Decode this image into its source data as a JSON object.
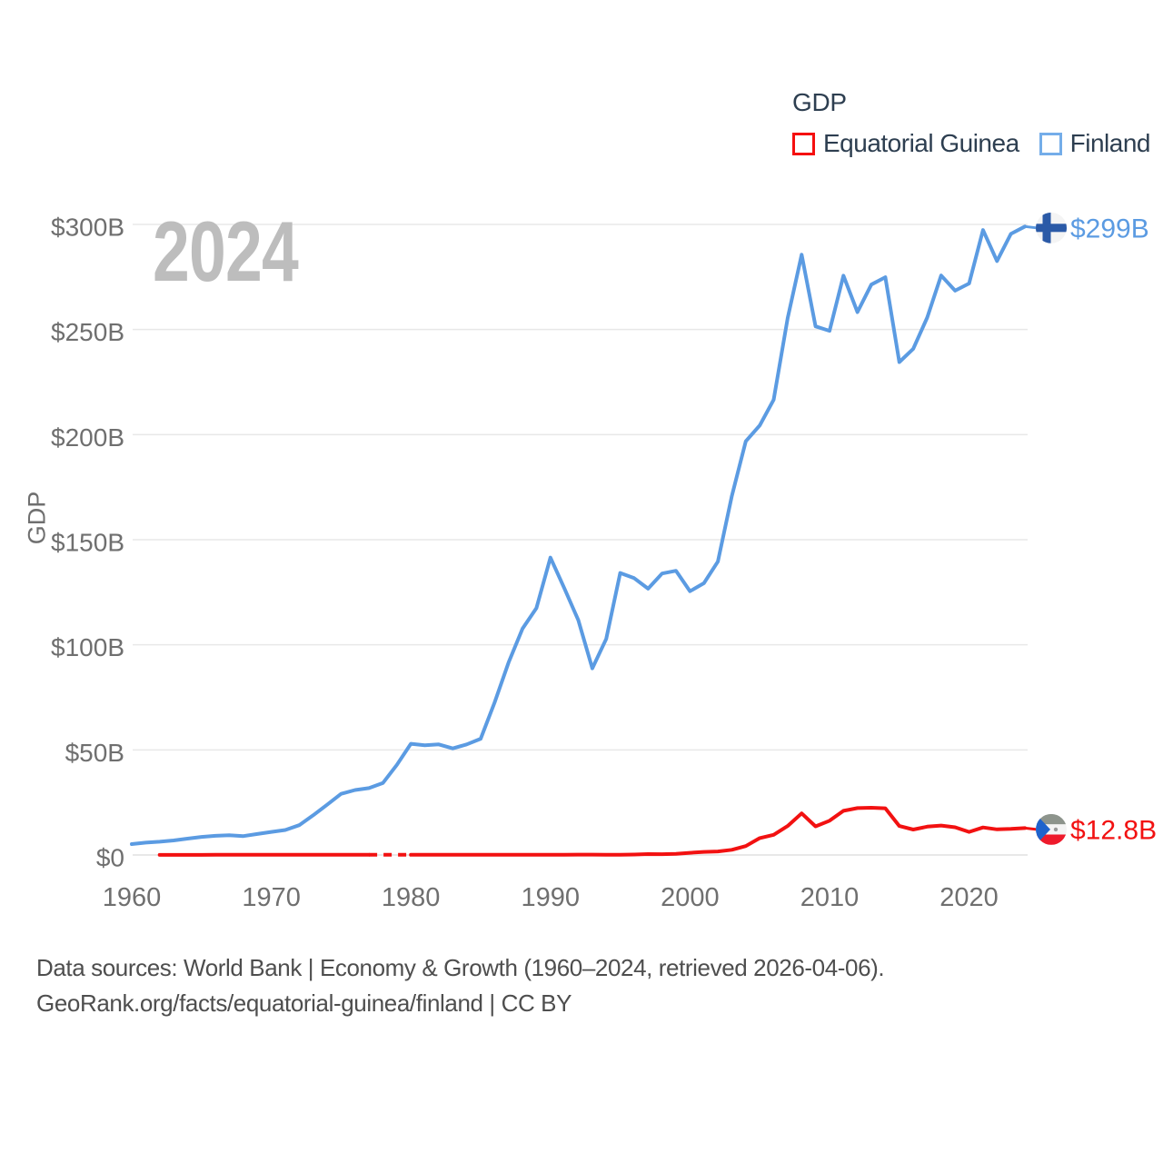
{
  "legend": {
    "title": "GDP",
    "items": [
      {
        "id": "equatorial-guinea",
        "label": "Equatorial Guinea",
        "swatch_color": "#f50f0f"
      },
      {
        "id": "finland",
        "label": "Finland",
        "swatch_color": "#74ade9"
      }
    ]
  },
  "watermark": "2024",
  "y_axis_title": "GDP",
  "footer": {
    "line1": "Data sources: World Bank | Economy & Growth (1960–2024, retrieved 2026-04-06).",
    "line2": "GeoRank.org/facts/equatorial-guinea/finland | CC BY"
  },
  "colors": {
    "grid": "#e8e8e8",
    "zero_line": "#e0e0e0",
    "tick_text": "#6f6f6f",
    "axis_title_text": "#6f6f6f",
    "watermark_text": "#bdbdbd",
    "legend_text": "#2d3e50",
    "footer_text": "#4e4e4e",
    "finland_line": "#5b9be2",
    "equatorial_guinea_line": "#f21111",
    "finland_flag_cross": "#2b5aa7",
    "flag_white": "#f4f4f4",
    "eqg_flag_green": "#8d948c",
    "eqg_flag_red": "#ee1a2b",
    "eqg_flag_blue": "#1f63cc"
  },
  "chart_data": {
    "type": "line",
    "title": "GDP",
    "xlabel": "",
    "ylabel": "GDP",
    "xlim": [
      1960,
      2024
    ],
    "ylim": [
      0,
      300
    ],
    "grid": "horizontal",
    "legend_position": "top-right",
    "x_ticks": [
      1960,
      1970,
      1980,
      1990,
      2000,
      2010,
      2020
    ],
    "y_ticks": [
      {
        "value": 0,
        "label": "$0"
      },
      {
        "value": 50,
        "label": "$50B"
      },
      {
        "value": 100,
        "label": "$100B"
      },
      {
        "value": 150,
        "label": "$150B"
      },
      {
        "value": 200,
        "label": "$200B"
      },
      {
        "value": 250,
        "label": "$250B"
      },
      {
        "value": 300,
        "label": "$300B"
      }
    ],
    "series": [
      {
        "name": "Equatorial Guinea",
        "id": "equatorial-guinea",
        "flag": "equatorial-guinea-flag-icon",
        "color": "#f21111",
        "start_year": 1962,
        "end_label": "$12.8B",
        "gap_years": [
          1978,
          1979
        ],
        "values": [
          0.05,
          0.05,
          0.06,
          0.06,
          0.07,
          0.07,
          0.08,
          0.07,
          0.08,
          0.08,
          0.09,
          0.1,
          0.12,
          0.12,
          0.11,
          0.11,
          null,
          null,
          0.1,
          0.11,
          0.12,
          0.13,
          0.12,
          0.1,
          0.12,
          0.13,
          0.13,
          0.12,
          0.13,
          0.14,
          0.16,
          0.16,
          0.13,
          0.14,
          0.23,
          0.44,
          0.37,
          0.52,
          1.05,
          1.46,
          1.69,
          2.48,
          4.23,
          8.05,
          9.6,
          13.8,
          19.8,
          13.6,
          16.3,
          21.0,
          22.3,
          22.5,
          22.2,
          13.8,
          12.1,
          13.5,
          14.0,
          13.2,
          11.0,
          13.1,
          12.2,
          12.4,
          12.8
        ]
      },
      {
        "name": "Finland",
        "id": "finland",
        "flag": "finland-flag-icon",
        "color": "#5b9be2",
        "start_year": 1960,
        "end_label": "$299B",
        "values": [
          5.2,
          5.9,
          6.3,
          6.9,
          7.8,
          8.6,
          9.1,
          9.4,
          9.0,
          10.0,
          11.0,
          11.9,
          14.2,
          18.9,
          23.9,
          29.1,
          30.9,
          31.8,
          34.3,
          42.9,
          52.9,
          52.2,
          52.6,
          50.7,
          52.6,
          55.3,
          72.5,
          91.5,
          107.7,
          117.5,
          141.5,
          126.9,
          111.7,
          88.8,
          102.8,
          134.2,
          131.7,
          126.7,
          133.9,
          135.2,
          125.5,
          129.3,
          139.6,
          170.9,
          196.8,
          204.4,
          216.6,
          255.4,
          285.6,
          251.5,
          249.4,
          275.6,
          258.3,
          271.4,
          274.9,
          234.5,
          240.8,
          255.7,
          275.7,
          268.5,
          271.9,
          297.3,
          282.6,
          295.5,
          299.0
        ]
      }
    ]
  }
}
